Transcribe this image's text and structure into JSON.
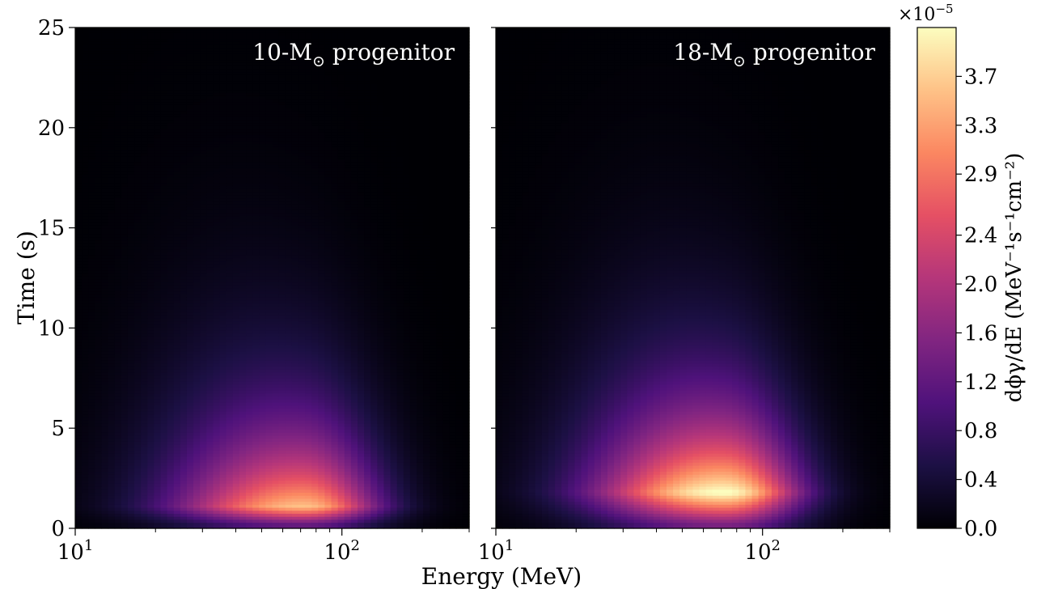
{
  "chart_data": {
    "type": "heatmap",
    "xlabel": "Energy (MeV)",
    "ylabel": "Time (s)",
    "x_scale": "log",
    "xlim": [
      10,
      300
    ],
    "ylim": [
      0,
      25
    ],
    "x_ticks": [
      {
        "value": 10,
        "base": "10",
        "exp": "1"
      },
      {
        "value": 100,
        "base": "10",
        "exp": "2"
      }
    ],
    "y_ticks": [
      0,
      5,
      10,
      15,
      20,
      25
    ],
    "panels": [
      {
        "label_prefix": "10-M",
        "label_sub": "⊙",
        "label_suffix": " progenitor",
        "peak": {
          "energy_mev": 72,
          "time_s": 1.1,
          "value": 3.6e-05
        }
      },
      {
        "label_prefix": "18-M",
        "label_sub": "⊙",
        "label_suffix": " progenitor",
        "peak": {
          "energy_mev": 72,
          "time_s": 1.8,
          "value": 4.2e-05
        }
      }
    ],
    "colorbar": {
      "label": "dϕγ/dE (MeV⁻¹s⁻¹cm⁻²)",
      "multiplier_base": "×10",
      "multiplier_exp": "−5",
      "ticks": [
        "0.0",
        "0.4",
        "0.8",
        "1.2",
        "1.6",
        "2.0",
        "2.4",
        "2.9",
        "3.3",
        "3.7"
      ],
      "range": [
        0.0,
        4.1
      ],
      "colormap": "magma",
      "colormap_stops": [
        "#000004",
        "#1c1044",
        "#4f127b",
        "#812581",
        "#b5367a",
        "#e55064",
        "#fb8761",
        "#fec287",
        "#fcfdbf"
      ]
    }
  }
}
